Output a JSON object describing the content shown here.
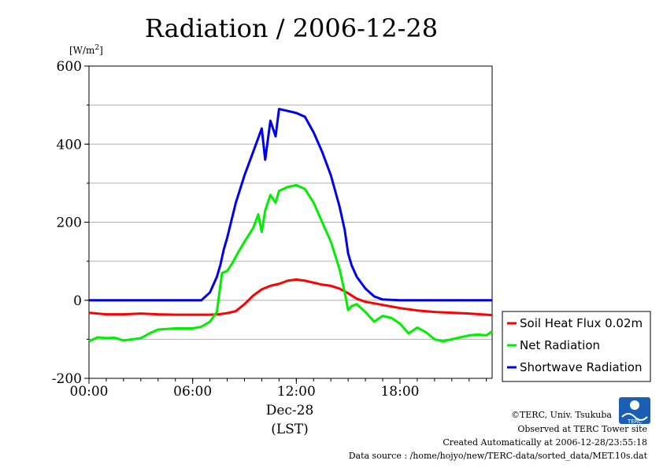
{
  "chart_data": {
    "type": "line",
    "title": "Radiation / 2006-12-28",
    "ylabel": "[W/m2]",
    "ylabel_parts": {
      "main": "[W/m",
      "sup": "2",
      "close": "]"
    },
    "xlabel_date": "Dec-28",
    "xlabel_tz": "(LST)",
    "ylim": [
      -200,
      600
    ],
    "xlim": [
      0,
      23.333
    ],
    "grid": true,
    "legend_position": "right",
    "yticks": [
      {
        "value": 600,
        "label": "600"
      },
      {
        "value": 400,
        "label": "400"
      },
      {
        "value": 200,
        "label": "200"
      },
      {
        "value": 0,
        "label": "0"
      },
      {
        "value": -200,
        "label": "-200"
      }
    ],
    "xticks": [
      {
        "value": 0,
        "label": "00:00"
      },
      {
        "value": 6,
        "label": "06:00"
      },
      {
        "value": 12,
        "label": "12:00"
      },
      {
        "value": 18,
        "label": "18:00"
      }
    ],
    "series": [
      {
        "name": "Soil Heat Flux 0.02m",
        "color": "#ff0000",
        "x": [
          0,
          1,
          2,
          3,
          4,
          5,
          6,
          7,
          7.5,
          8,
          8.5,
          9,
          9.5,
          10,
          10.5,
          11,
          11.5,
          12,
          12.5,
          13,
          13.5,
          14,
          14.5,
          15,
          15.5,
          16,
          17,
          18,
          19,
          20,
          21,
          22,
          23.333
        ],
        "values": [
          -32,
          -36,
          -36,
          -34,
          -36,
          -37,
          -37,
          -37,
          -36,
          -33,
          -28,
          -10,
          12,
          28,
          37,
          42,
          50,
          53,
          50,
          45,
          40,
          37,
          30,
          18,
          4,
          -4,
          -12,
          -20,
          -26,
          -30,
          -32,
          -34,
          -38
        ]
      },
      {
        "name": "Net Radiation",
        "color": "#00ee00",
        "x": [
          0,
          0.5,
          1,
          1.5,
          2,
          2.5,
          3,
          3.5,
          4,
          5,
          6,
          6.5,
          7,
          7.4,
          7.7,
          8,
          8.3,
          8.6,
          9,
          9.5,
          9.8,
          10,
          10.2,
          10.5,
          10.8,
          11,
          11.5,
          12,
          12.5,
          13,
          13.5,
          14,
          14.5,
          14.8,
          15,
          15.2,
          15.5,
          16,
          16.5,
          17,
          17.5,
          18,
          18.5,
          19,
          19.5,
          20,
          20.5,
          21,
          21.5,
          22,
          22.5,
          23,
          23.333
        ],
        "values": [
          -105,
          -95,
          -97,
          -96,
          -103,
          -100,
          -97,
          -85,
          -75,
          -72,
          -72,
          -68,
          -55,
          -30,
          70,
          75,
          95,
          120,
          150,
          185,
          220,
          175,
          230,
          270,
          250,
          280,
          290,
          295,
          285,
          250,
          200,
          150,
          80,
          20,
          -25,
          -15,
          -10,
          -30,
          -55,
          -40,
          -45,
          -60,
          -85,
          -70,
          -82,
          -100,
          -105,
          -100,
          -95,
          -90,
          -88,
          -90,
          -80
        ]
      },
      {
        "name": "Shortwave Radiation",
        "color": "#0000ee",
        "x": [
          0,
          2,
          3.5,
          4,
          5,
          6,
          6.5,
          7,
          7.4,
          7.6,
          7.8,
          8,
          8.5,
          9,
          9.5,
          10,
          10.2,
          10.5,
          10.8,
          11,
          11.5,
          12,
          12.5,
          13,
          13.5,
          14,
          14.5,
          14.8,
          15,
          15.2,
          15.5,
          16,
          16.5,
          17,
          18,
          20,
          22,
          23.333
        ],
        "values": [
          0,
          0,
          0,
          0,
          0,
          0,
          0,
          20,
          60,
          90,
          130,
          160,
          250,
          320,
          380,
          440,
          360,
          460,
          420,
          490,
          485,
          480,
          470,
          430,
          380,
          320,
          240,
          180,
          120,
          90,
          60,
          30,
          10,
          2,
          0,
          0,
          0,
          0
        ]
      }
    ]
  },
  "footer": {
    "copyright": "©TERC, Univ. Tsukuba",
    "observed": "Observed at TERC Tower site",
    "created": "Created Automatically at 2006-12-28/23:55:18",
    "source": "Data source : /home/hojyo/new/TERC-data/sorted_data/MET.10s.dat",
    "logo_text": "TERC"
  }
}
